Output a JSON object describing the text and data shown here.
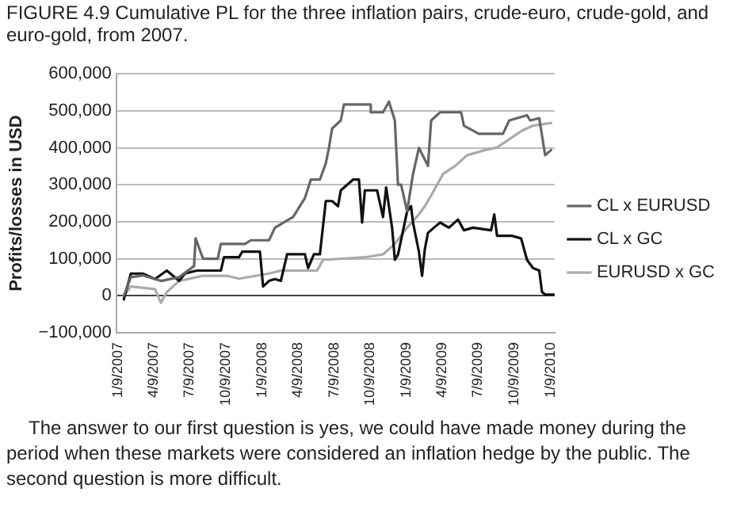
{
  "chart_data": {
    "type": "line",
    "title": "FIGURE 4.9 Cumulative PL for the three inflation pairs, crude-euro, crude-gold, and euro-gold, from 2007.",
    "ylabel": "Profits/losses in USD",
    "xlim": [
      "2007-01-04",
      "2010-01-19"
    ],
    "xticks": [
      {
        "value": "2007-01-09",
        "label": "1/9/2007"
      },
      {
        "value": "2007-04-09",
        "label": "4/9/2007"
      },
      {
        "value": "2007-07-09",
        "label": "7/9/2007"
      },
      {
        "value": "2007-10-09",
        "label": "10/9/2007"
      },
      {
        "value": "2008-01-09",
        "label": "1/9/2008"
      },
      {
        "value": "2008-04-09",
        "label": "4/9/2008"
      },
      {
        "value": "2008-07-09",
        "label": "7/9/2008"
      },
      {
        "value": "2008-10-09",
        "label": "10/9/2008"
      },
      {
        "value": "2009-01-09",
        "label": "1/9/2009"
      },
      {
        "value": "2009-04-09",
        "label": "4/9/2009"
      },
      {
        "value": "2009-07-09",
        "label": "7/9/2009"
      },
      {
        "value": "2009-10-09",
        "label": "10/9/2009"
      },
      {
        "value": "2010-01-09",
        "label": "1/9/2010"
      }
    ],
    "ylim": [
      -100000,
      600000
    ],
    "yticks": [
      {
        "value": -100000,
        "label": "−100,000"
      },
      {
        "value": 0,
        "label": "0"
      },
      {
        "value": 100000,
        "label": "100,000"
      },
      {
        "value": 200000,
        "label": "200,000"
      },
      {
        "value": 300000,
        "label": "300,000"
      },
      {
        "value": 400000,
        "label": "400,000"
      },
      {
        "value": 500000,
        "label": "500,000"
      },
      {
        "value": 600000,
        "label": "600,000"
      }
    ],
    "grid": "y",
    "legend": "right",
    "marker": "none",
    "line_style": "solid",
    "series": [
      {
        "name": "CL x EURUSD",
        "color": "#666666",
        "x": [
          "2007-01-23",
          "2007-02-10",
          "2007-03-12",
          "2007-04-27",
          "2007-06-12",
          "2007-07-20",
          "2007-07-24",
          "2007-08-12",
          "2007-09-18",
          "2007-09-26",
          "2007-11-26",
          "2007-12-11",
          "2008-01-26",
          "2008-02-10",
          "2008-03-27",
          "2008-04-26",
          "2008-05-11",
          "2008-06-03",
          "2008-06-18",
          "2008-06-26",
          "2008-07-04",
          "2008-07-26",
          "2008-08-03",
          "2008-10-10",
          "2008-10-10",
          "2008-11-10",
          "2008-11-25",
          "2008-12-10",
          "2008-12-18",
          "2008-12-26",
          "2009-01-10",
          "2009-01-25",
          "2009-02-09",
          "2009-03-04",
          "2009-03-12",
          "2009-04-04",
          "2009-05-27",
          "2009-06-03",
          "2009-07-11",
          "2009-09-10",
          "2009-09-26",
          "2009-11-10",
          "2009-11-18",
          "2009-12-11",
          "2009-12-26",
          "2010-01-10"
        ],
        "values": [
          0,
          50000,
          55000,
          40000,
          50000,
          80000,
          155000,
          100000,
          100000,
          140000,
          140000,
          150000,
          150000,
          184000,
          213000,
          264000,
          314000,
          314000,
          358000,
          400000,
          452000,
          474000,
          517000,
          517000,
          496000,
          496000,
          525000,
          474000,
          300000,
          300000,
          228000,
          329000,
          400000,
          351000,
          474000,
          496000,
          496000,
          460000,
          438000,
          438000,
          474000,
          488000,
          474000,
          480000,
          380000,
          394000
        ]
      },
      {
        "name": "CL x GC",
        "color": "#111111",
        "x": [
          "2007-01-23",
          "2007-02-10",
          "2007-03-12",
          "2007-04-12",
          "2007-05-12",
          "2007-06-12",
          "2007-06-27",
          "2007-07-27",
          "2007-09-26",
          "2007-10-04",
          "2007-11-11",
          "2007-11-19",
          "2008-01-03",
          "2008-01-11",
          "2008-01-26",
          "2008-02-10",
          "2008-02-25",
          "2008-03-12",
          "2008-04-26",
          "2008-05-04",
          "2008-05-19",
          "2008-06-03",
          "2008-06-18",
          "2008-07-04",
          "2008-07-19",
          "2008-07-26",
          "2008-08-26",
          "2008-09-10",
          "2008-09-18",
          "2008-09-25",
          "2008-10-26",
          "2008-11-10",
          "2008-11-18",
          "2008-12-03",
          "2008-12-10",
          "2008-12-18",
          "2009-01-10",
          "2009-01-20",
          "2009-01-25",
          "2009-02-09",
          "2009-02-17",
          "2009-02-24",
          "2009-03-04",
          "2009-03-19",
          "2009-04-04",
          "2009-04-26",
          "2009-05-19",
          "2009-06-03",
          "2009-06-26",
          "2009-08-11",
          "2009-08-19",
          "2009-08-26",
          "2009-10-03",
          "2009-10-26",
          "2009-11-10",
          "2009-11-25",
          "2009-12-11",
          "2009-12-18",
          "2009-12-26",
          "2010-01-18"
        ],
        "values": [
          -10000,
          60000,
          60000,
          45000,
          68000,
          40000,
          60000,
          68000,
          68000,
          104000,
          104000,
          119000,
          119000,
          25000,
          40000,
          45000,
          40000,
          112000,
          112000,
          75000,
          112000,
          112000,
          256000,
          256000,
          242000,
          285000,
          314000,
          314000,
          198000,
          285000,
          285000,
          213000,
          293000,
          184000,
          97000,
          111000,
          228000,
          242000,
          198000,
          119000,
          54000,
          126000,
          170000,
          184000,
          198000,
          184000,
          206000,
          177000,
          184000,
          177000,
          220000,
          162000,
          162000,
          155000,
          97000,
          75000,
          68000,
          10000,
          3000,
          3000
        ]
      },
      {
        "name": "EURUSD x GC",
        "color": "#aaaaaa",
        "x": [
          "2007-01-23",
          "2007-02-10",
          "2007-04-12",
          "2007-04-27",
          "2007-05-12",
          "2007-06-12",
          "2007-08-12",
          "2007-10-11",
          "2007-11-11",
          "2008-01-26",
          "2008-02-25",
          "2008-05-27",
          "2008-06-11",
          "2008-09-25",
          "2008-11-10",
          "2008-12-10",
          "2009-01-10",
          "2009-02-09",
          "2009-02-24",
          "2009-03-12",
          "2009-03-27",
          "2009-04-11",
          "2009-05-12",
          "2009-06-11",
          "2009-07-27",
          "2009-08-26",
          "2009-09-26",
          "2009-10-26",
          "2009-11-25",
          "2010-01-10"
        ],
        "values": [
          0,
          25000,
          18000,
          -19000,
          10000,
          40000,
          54000,
          54000,
          46000,
          60000,
          68000,
          68000,
          97000,
          104000,
          112000,
          140000,
          184000,
          220000,
          242000,
          271000,
          300000,
          329000,
          351000,
          380000,
          394000,
          401000,
          423000,
          445000,
          460000,
          467000
        ]
      }
    ],
    "annotations": [
      "The answer to our first question is yes, we could have made money during the period when these markets were considered an inflation hedge by the public. The second question is more difficult."
    ]
  }
}
